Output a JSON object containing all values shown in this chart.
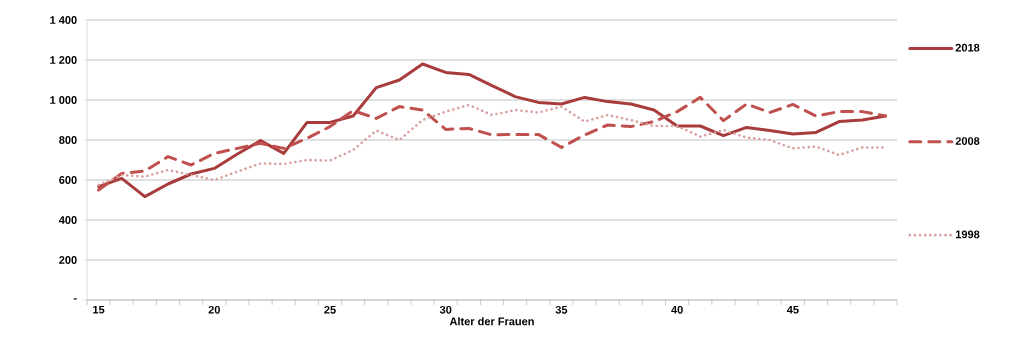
{
  "chart_data": {
    "type": "line",
    "xlabel": "Alter der Frauen",
    "categories": [
      "15",
      null,
      null,
      null,
      null,
      "20",
      null,
      null,
      null,
      null,
      "25",
      null,
      null,
      null,
      null,
      "30",
      null,
      null,
      null,
      null,
      "35",
      null,
      null,
      null,
      null,
      "40",
      null,
      null,
      null,
      null,
      "45",
      null,
      null,
      null,
      null
    ],
    "series": [
      {
        "name": "2018",
        "color": "#a83c3c",
        "line_style": "solid",
        "values": [
          567,
          608,
          517,
          580,
          630,
          658,
          730,
          797,
          733,
          887,
          888,
          920,
          1062,
          1100,
          1180,
          1138,
          1128,
          1072,
          1017,
          988,
          980,
          1013,
          992,
          980,
          950,
          870,
          870,
          822,
          863,
          847,
          830,
          838,
          892,
          900,
          920
        ]
      },
      {
        "name": "2008",
        "color": "#c0504d",
        "line_style": "dashed",
        "values": [
          550,
          633,
          645,
          717,
          675,
          733,
          758,
          783,
          758,
          808,
          867,
          947,
          908,
          967,
          950,
          853,
          858,
          825,
          828,
          828,
          763,
          825,
          875,
          867,
          892,
          942,
          1013,
          897,
          980,
          937,
          978,
          920,
          942,
          942,
          920
        ]
      },
      {
        "name": "1998",
        "color": "#d9a0a0",
        "line_style": "dotted",
        "values": [
          575,
          625,
          617,
          650,
          625,
          600,
          642,
          683,
          680,
          700,
          697,
          750,
          847,
          800,
          900,
          942,
          975,
          925,
          950,
          937,
          967,
          892,
          925,
          900,
          870,
          870,
          817,
          850,
          812,
          800,
          758,
          767,
          725,
          763,
          762
        ]
      }
    ],
    "ylim": [
      0,
      1400
    ],
    "yticks": [
      {
        "value": 0,
        "label": "-"
      },
      200,
      400,
      600,
      800,
      {
        "value": 1000,
        "label": "1 000"
      },
      {
        "value": 1200,
        "label": "1 200"
      },
      {
        "value": 1400,
        "label": "1 400"
      }
    ],
    "grid": "y",
    "legend": "right",
    "marker": "none"
  }
}
